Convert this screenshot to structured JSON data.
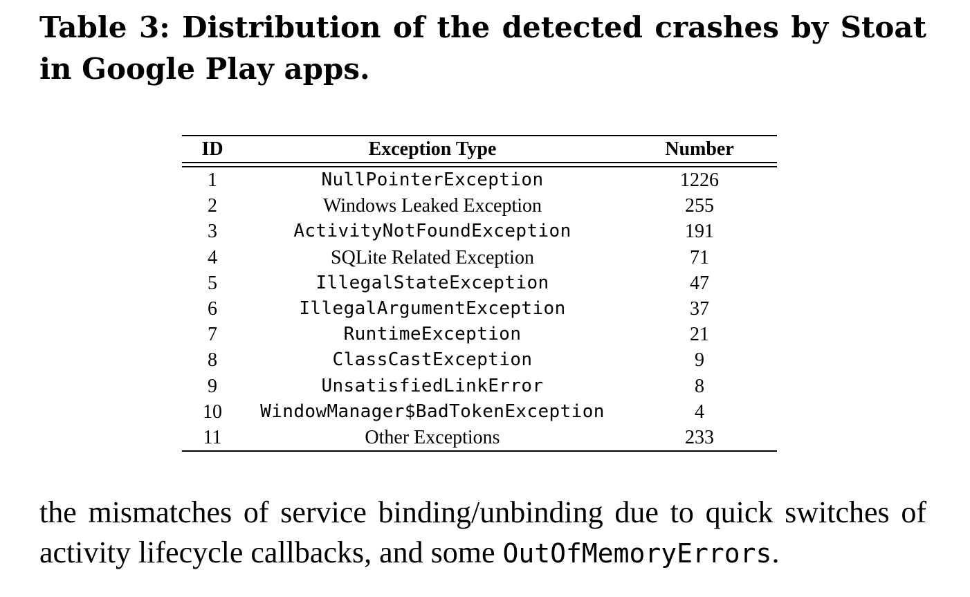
{
  "caption": "Table 3: Distribution of the detected crashes by Stoat in Google Play apps.",
  "table": {
    "headers": {
      "id": "ID",
      "type": "Exception Type",
      "number": "Number"
    },
    "rows": [
      {
        "id": "1",
        "type": "NullPointerException",
        "number": "1226",
        "mono": true
      },
      {
        "id": "2",
        "type": "Windows Leaked Exception",
        "number": "255",
        "mono": false
      },
      {
        "id": "3",
        "type": "ActivityNotFoundException",
        "number": "191",
        "mono": true
      },
      {
        "id": "4",
        "type": "SQLite Related Exception",
        "number": "71",
        "mono": false
      },
      {
        "id": "5",
        "type": "IllegalStateException",
        "number": "47",
        "mono": true
      },
      {
        "id": "6",
        "type": "IllegalArgumentException",
        "number": "37",
        "mono": true
      },
      {
        "id": "7",
        "type": "RuntimeException",
        "number": "21",
        "mono": true
      },
      {
        "id": "8",
        "type": "ClassCastException",
        "number": "9",
        "mono": true
      },
      {
        "id": "9",
        "type": "UnsatisfiedLinkError",
        "number": "8",
        "mono": true
      },
      {
        "id": "10",
        "type": "WindowManager$BadTokenException",
        "number": "4",
        "mono": true
      },
      {
        "id": "11",
        "type": "Other Exceptions",
        "number": "233",
        "mono": false
      }
    ]
  },
  "body": {
    "text_before": "the mismatches of service binding/unbinding due to quick switches of activity lifecycle callbacks, and some ",
    "code": "OutOfMemoryErrors",
    "text_after": "."
  }
}
